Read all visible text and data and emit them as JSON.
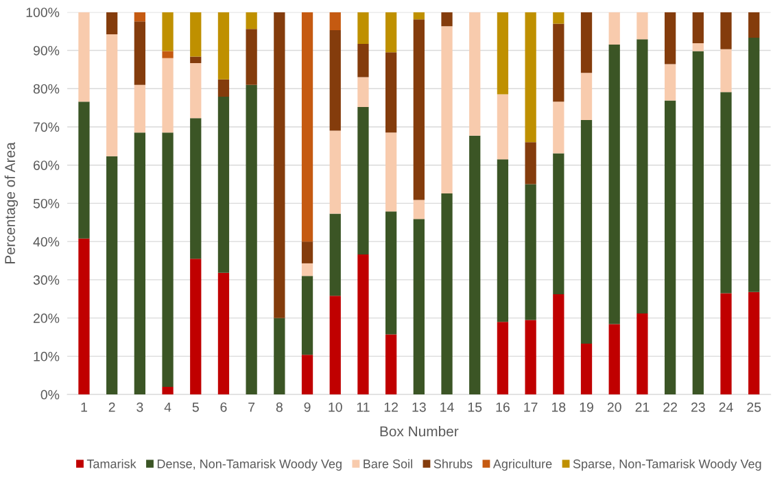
{
  "chart_data": {
    "type": "bar",
    "stacked": true,
    "xlabel": "Box Number",
    "ylabel": "Percentage of Area",
    "categories": [
      "1",
      "2",
      "3",
      "4",
      "5",
      "6",
      "7",
      "8",
      "9",
      "10",
      "11",
      "12",
      "13",
      "14",
      "15",
      "16",
      "17",
      "18",
      "19",
      "20",
      "21",
      "22",
      "23",
      "24",
      "25"
    ],
    "series": [
      {
        "name": "Tamarisk",
        "color": "#c00000",
        "values": [
          40.8,
          0,
          0,
          2,
          35.5,
          31.8,
          0,
          0,
          10.4,
          25.8,
          36.6,
          15.7,
          0,
          0,
          0,
          19,
          19.5,
          26.2,
          13.3,
          18.4,
          21.2,
          0,
          0,
          26.5,
          26.8
        ]
      },
      {
        "name": "Dense, Non-Tamarisk Woody Veg",
        "color": "#3b5525",
        "values": [
          35.8,
          62.3,
          68.5,
          66.5,
          36.8,
          46.1,
          81,
          20,
          20.6,
          21.5,
          38.6,
          32.2,
          45.9,
          52.6,
          67.7,
          42.5,
          35.5,
          36.9,
          58.5,
          73.1,
          71.7,
          76.9,
          89.8,
          52.6,
          66.5
        ]
      },
      {
        "name": "Bare Soil",
        "color": "#f8cbad",
        "values": [
          23.4,
          31.9,
          12.5,
          19.5,
          14.4,
          0,
          0,
          0,
          3.3,
          21.7,
          7.8,
          20.6,
          5,
          43.7,
          32.3,
          17,
          0,
          13.5,
          12.3,
          8.5,
          7.1,
          9.5,
          2.1,
          11.2,
          0
        ]
      },
      {
        "name": "Shrubs",
        "color": "#843c0c",
        "values": [
          0,
          5.8,
          16.6,
          0,
          1.7,
          4.5,
          14.6,
          80,
          5.7,
          26.3,
          8.7,
          21,
          47.2,
          3.7,
          0,
          0,
          11,
          20.4,
          15.9,
          0,
          0,
          13.6,
          8.1,
          9.7,
          6.7
        ]
      },
      {
        "name": "Agriculture",
        "color": "#c55a11",
        "values": [
          0,
          0,
          2.4,
          1.8,
          0,
          0,
          0,
          0,
          60,
          4.7,
          0,
          0,
          0,
          0,
          0,
          0,
          0,
          0,
          0,
          0,
          0,
          0,
          0,
          0,
          0
        ]
      },
      {
        "name": "Sparse, Non-Tamarisk Woody Veg",
        "color": "#bf9000",
        "values": [
          0,
          0,
          0,
          10.2,
          11.6,
          17.6,
          4.4,
          0,
          0,
          0,
          8.3,
          10.5,
          1.9,
          0,
          0,
          21.5,
          34,
          3,
          0,
          0,
          0,
          0,
          0,
          0,
          0
        ]
      }
    ],
    "ylim": [
      0,
      100
    ],
    "yticks": [
      {
        "value": 0,
        "label": "0%"
      },
      {
        "value": 10,
        "label": "10%"
      },
      {
        "value": 20,
        "label": "20%"
      },
      {
        "value": 30,
        "label": "30%"
      },
      {
        "value": 40,
        "label": "40%"
      },
      {
        "value": 50,
        "label": "50%"
      },
      {
        "value": 60,
        "label": "60%"
      },
      {
        "value": 70,
        "label": "70%"
      },
      {
        "value": 80,
        "label": "80%"
      },
      {
        "value": 90,
        "label": "90%"
      },
      {
        "value": 100,
        "label": "100%"
      }
    ],
    "grid": "y",
    "legend": "bottom"
  }
}
